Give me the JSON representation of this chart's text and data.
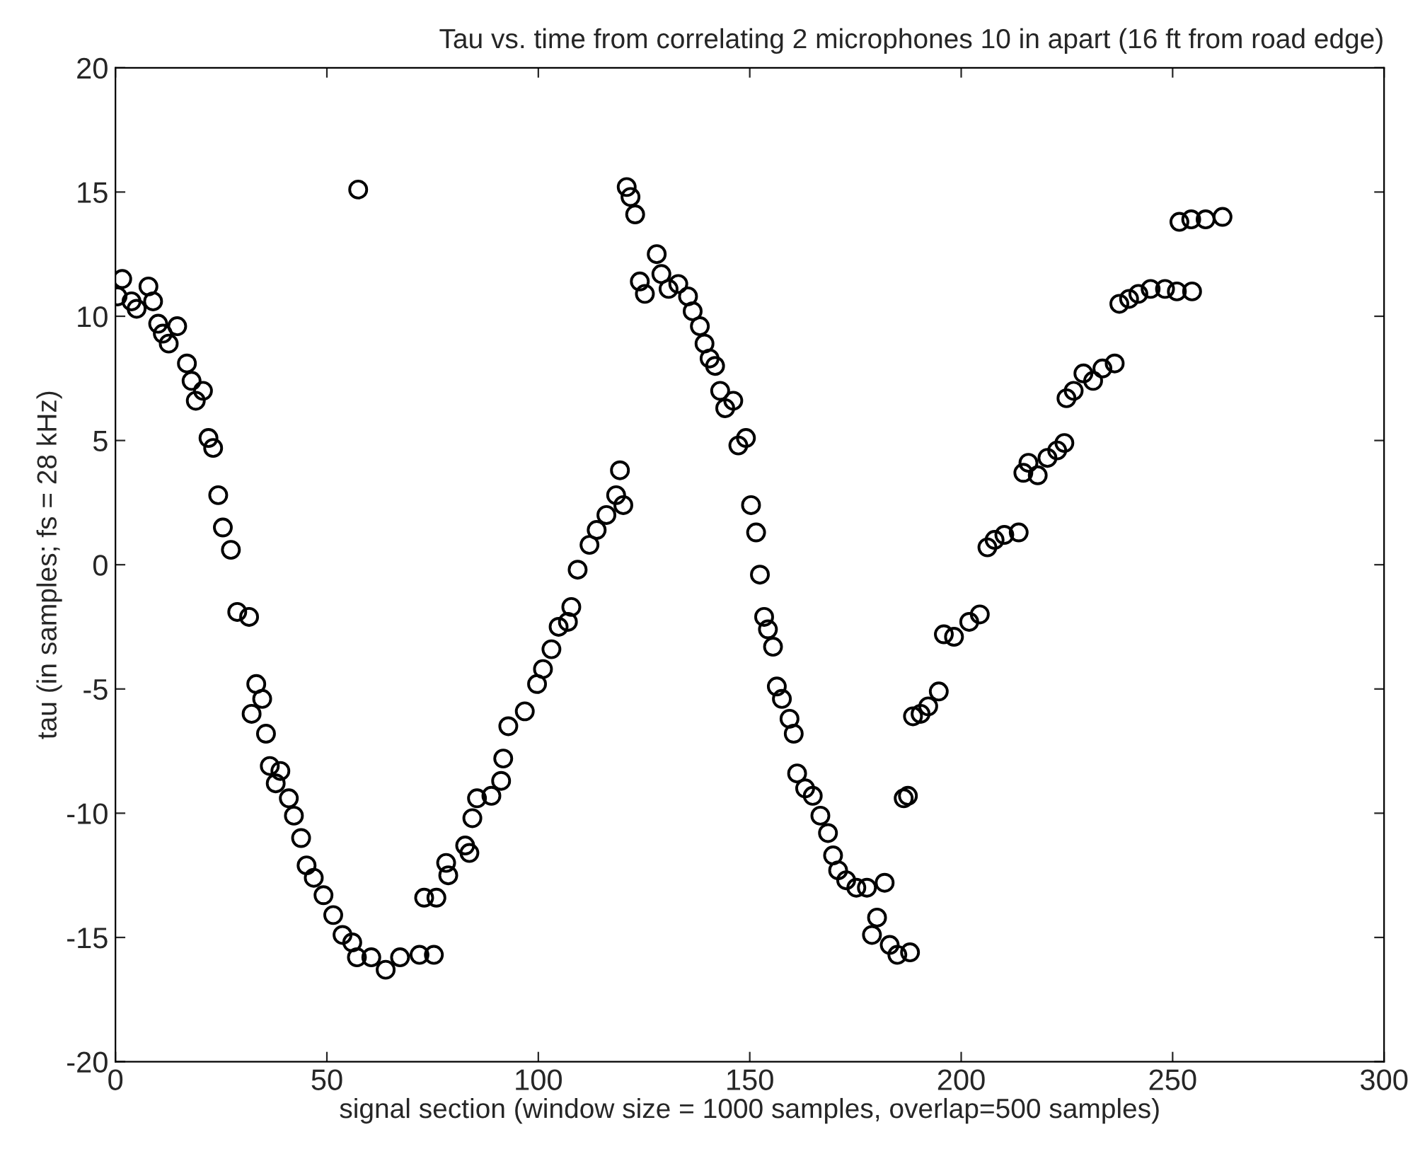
{
  "chart_data": {
    "type": "scatter",
    "title": "Tau vs. time from correlating 2 microphones 10 in apart (16 ft from road edge)",
    "xlabel": "signal section (window size = 1000 samples, overlap=500 samples)",
    "ylabel": "tau (in samples; fs = 28 kHz)",
    "xlim": [
      0,
      300
    ],
    "ylim": [
      -20,
      20
    ],
    "xticks": [
      0,
      50,
      100,
      150,
      200,
      250,
      300
    ],
    "yticks": [
      -20,
      -15,
      -10,
      -5,
      0,
      5,
      10,
      15,
      20
    ],
    "grid": false,
    "marker": "circle",
    "series": [
      {
        "color": "#000000",
        "x": [
          0.5,
          1.6,
          3.8,
          5.0,
          7.8,
          8.9,
          10.1,
          11.2,
          12.6,
          14.6,
          16.9,
          18.0,
          19.0,
          20.7,
          22.0,
          23.1,
          24.3,
          25.4,
          27.3,
          28.8,
          31.6,
          32.2,
          33.3,
          34.7,
          35.6,
          36.5,
          37.9,
          39.0,
          41.0,
          42.2,
          43.9,
          45.2,
          46.9,
          49.2,
          51.5,
          53.7,
          56.0,
          57.1,
          57.4,
          60.5,
          63.9,
          67.3,
          71.9,
          73.0,
          75.3,
          75.9,
          78.2,
          78.7,
          82.7,
          83.7,
          84.4,
          85.5,
          88.9,
          91.2,
          91.7,
          92.9,
          96.8,
          99.7,
          101.1,
          103.1,
          104.8,
          107.0,
          107.8,
          109.3,
          112.1,
          113.8,
          116.1,
          118.4,
          119.3,
          120.1,
          120.9,
          121.8,
          122.9,
          124.0,
          125.2,
          128.0,
          129.1,
          130.8,
          133.1,
          135.4,
          136.5,
          138.2,
          139.3,
          140.5,
          141.8,
          143.0,
          144.2,
          146.1,
          147.3,
          149.1,
          150.3,
          151.5,
          152.4,
          153.4,
          154.3,
          155.5,
          156.4,
          157.6,
          159.4,
          160.4,
          161.2,
          163.1,
          164.9,
          166.7,
          168.5,
          169.7,
          170.9,
          172.8,
          175.2,
          177.7,
          178.9,
          180.1,
          181.9,
          183.1,
          184.9,
          186.4,
          187.4,
          187.9,
          188.6,
          190.4,
          192.2,
          194.7,
          195.9,
          198.3,
          201.9,
          204.4,
          206.2,
          207.9,
          210.2,
          213.6,
          214.7,
          215.9,
          218.1,
          220.4,
          222.7,
          224.4,
          224.9,
          226.6,
          228.9,
          231.2,
          233.4,
          236.3,
          237.4,
          239.7,
          241.9,
          244.8,
          248.2,
          251.0,
          251.6,
          254.4,
          254.6,
          257.8,
          261.8
        ],
        "values": [
          10.8,
          11.5,
          10.6,
          10.3,
          11.2,
          10.6,
          9.7,
          9.3,
          8.9,
          9.6,
          8.1,
          7.4,
          6.6,
          7.0,
          5.1,
          4.7,
          2.8,
          1.5,
          0.6,
          -1.9,
          -2.1,
          -6.0,
          -4.8,
          -5.4,
          -6.8,
          -8.1,
          -8.8,
          -8.3,
          -9.4,
          -10.1,
          -11.0,
          -12.1,
          -12.6,
          -13.3,
          -14.1,
          -14.9,
          -15.2,
          -15.8,
          15.1,
          -15.8,
          -16.3,
          -15.8,
          -15.7,
          -13.4,
          -15.7,
          -13.4,
          -12.0,
          -12.5,
          -11.3,
          -11.6,
          -10.2,
          -9.4,
          -9.3,
          -8.7,
          -7.8,
          -6.5,
          -5.9,
          -4.8,
          -4.2,
          -3.4,
          -2.5,
          -2.3,
          -1.7,
          -0.2,
          0.8,
          1.4,
          2.0,
          2.8,
          3.8,
          2.4,
          15.2,
          14.8,
          14.1,
          11.4,
          10.9,
          12.5,
          11.7,
          11.1,
          11.3,
          10.8,
          10.2,
          9.6,
          8.9,
          8.3,
          8.0,
          7.0,
          6.3,
          6.6,
          4.8,
          5.1,
          2.4,
          1.3,
          -0.4,
          -2.1,
          -2.6,
          -3.3,
          -4.9,
          -5.4,
          -6.2,
          -6.8,
          -8.4,
          -9.0,
          -9.3,
          -10.1,
          -10.8,
          -11.7,
          -12.3,
          -12.7,
          -13.0,
          -13.0,
          -14.9,
          -14.2,
          -12.8,
          -15.3,
          -15.7,
          -9.4,
          -9.3,
          -15.6,
          -6.1,
          -6.0,
          -5.7,
          -5.1,
          -2.8,
          -2.9,
          -2.3,
          -2.0,
          0.7,
          1.0,
          1.2,
          1.3,
          3.7,
          4.1,
          3.6,
          4.3,
          4.6,
          4.9,
          6.7,
          7.0,
          7.7,
          7.4,
          7.9,
          8.1,
          10.5,
          10.7,
          10.9,
          11.1,
          11.1,
          11.0,
          13.8,
          13.9,
          11.0,
          13.9,
          14.0
        ]
      }
    ]
  }
}
